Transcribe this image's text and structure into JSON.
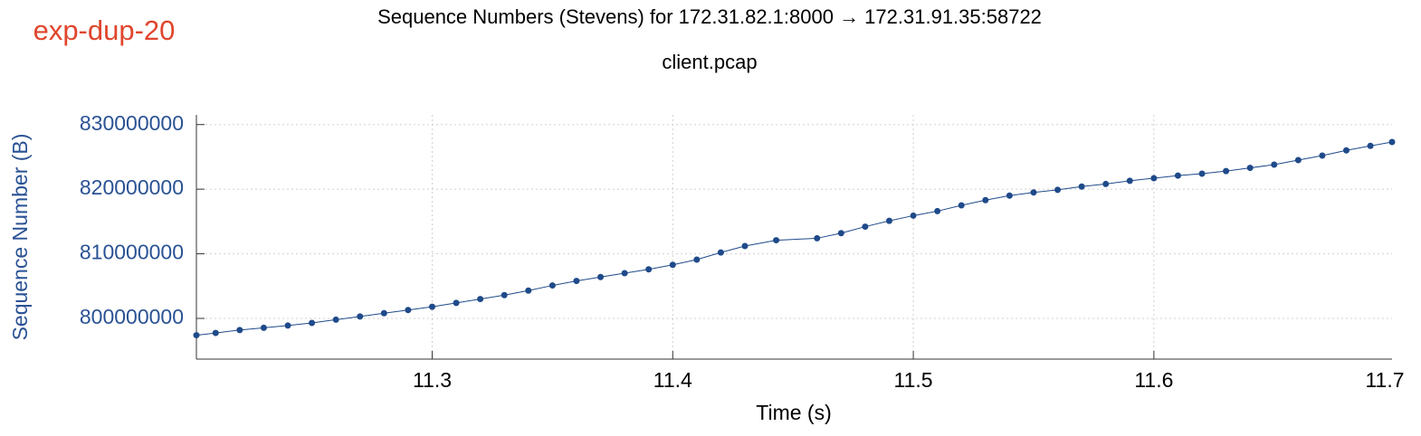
{
  "label": "exp-dup-20",
  "chart_data": {
    "type": "line",
    "title": "Sequence Numbers (Stevens) for 172.31.82.1:8000 → 172.31.91.35:58722",
    "subtitle": "client.pcap",
    "x_label": "Time (s)",
    "y_label": "Sequence Number (B)",
    "color": "#1f4a8a",
    "markers": true,
    "grid": true,
    "xlim": [
      11.202,
      11.699
    ],
    "ylim": [
      793700000,
      831500000
    ],
    "xticks": [
      11.3,
      11.4,
      11.5,
      11.6,
      11.7
    ],
    "yticks": [
      800000000,
      810000000,
      820000000,
      830000000
    ],
    "x": [
      11.202,
      11.21,
      11.22,
      11.23,
      11.24,
      11.25,
      11.26,
      11.27,
      11.28,
      11.29,
      11.3,
      11.31,
      11.32,
      11.33,
      11.34,
      11.35,
      11.36,
      11.37,
      11.38,
      11.39,
      11.4,
      11.41,
      11.42,
      11.43,
      11.443,
      11.46,
      11.47,
      11.48,
      11.49,
      11.5,
      11.51,
      11.52,
      11.53,
      11.54,
      11.55,
      11.56,
      11.57,
      11.58,
      11.59,
      11.6,
      11.61,
      11.62,
      11.63,
      11.64,
      11.65,
      11.66,
      11.67,
      11.68,
      11.69,
      11.699
    ],
    "values": [
      797400000,
      797750000,
      798200000,
      798550000,
      798900000,
      799300000,
      799800000,
      800300000,
      800800000,
      801300000,
      801800000,
      802400000,
      803000000,
      803600000,
      804300000,
      805100000,
      805800000,
      806400000,
      807000000,
      807600000,
      808300000,
      809100000,
      810200000,
      811200000,
      812100000,
      812400000,
      813200000,
      814200000,
      815100000,
      815900000,
      816600000,
      817500000,
      818300000,
      819000000,
      819500000,
      819900000,
      820400000,
      820800000,
      821300000,
      821700000,
      822100000,
      822400000,
      822800000,
      823300000,
      823800000,
      824500000,
      825200000,
      826000000,
      826700000,
      827300000
    ]
  }
}
